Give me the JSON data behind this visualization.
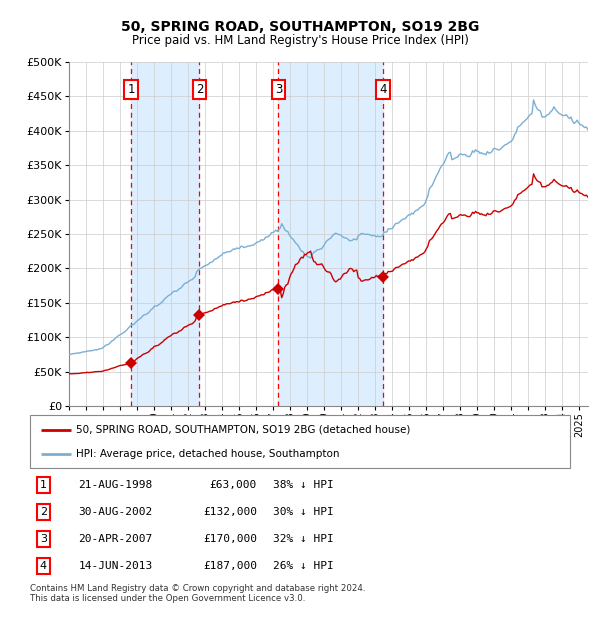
{
  "title": "50, SPRING ROAD, SOUTHAMPTON, SO19 2BG",
  "subtitle": "Price paid vs. HM Land Registry's House Price Index (HPI)",
  "ylim": [
    0,
    500000
  ],
  "yticks": [
    0,
    50000,
    100000,
    150000,
    200000,
    250000,
    300000,
    350000,
    400000,
    450000,
    500000
  ],
  "ytick_labels": [
    "£0",
    "£50K",
    "£100K",
    "£150K",
    "£200K",
    "£250K",
    "£300K",
    "£350K",
    "£400K",
    "£450K",
    "£500K"
  ],
  "hpi_color": "#7bafd4",
  "price_color": "#cc0000",
  "shade_color": "#ddeeff",
  "grid_color": "#cccccc",
  "purchases": [
    {
      "date_num": 1998.646,
      "price": 63000,
      "label": "1",
      "date_str": "21-AUG-1998",
      "pct": "38%"
    },
    {
      "date_num": 2002.662,
      "price": 132000,
      "label": "2",
      "date_str": "30-AUG-2002",
      "pct": "30%"
    },
    {
      "date_num": 2007.304,
      "price": 170000,
      "label": "3",
      "date_str": "20-APR-2007",
      "pct": "32%"
    },
    {
      "date_num": 2013.449,
      "price": 187000,
      "label": "4",
      "date_str": "14-JUN-2013",
      "pct": "26%"
    }
  ],
  "legend_label_price": "50, SPRING ROAD, SOUTHAMPTON, SO19 2BG (detached house)",
  "legend_label_hpi": "HPI: Average price, detached house, Southampton",
  "footnote": "Contains HM Land Registry data © Crown copyright and database right 2024.\nThis data is licensed under the Open Government Licence v3.0.",
  "xmin": 1995.0,
  "xmax": 2025.5,
  "xticks": [
    1995,
    1996,
    1997,
    1998,
    1999,
    2000,
    2001,
    2002,
    2003,
    2004,
    2005,
    2006,
    2007,
    2008,
    2009,
    2010,
    2011,
    2012,
    2013,
    2014,
    2015,
    2016,
    2017,
    2018,
    2019,
    2020,
    2021,
    2022,
    2023,
    2024,
    2025
  ]
}
